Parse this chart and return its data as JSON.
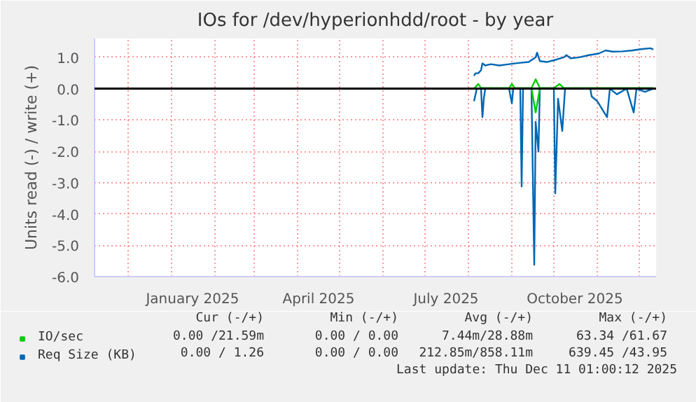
{
  "chart_data": {
    "type": "line",
    "title": "IOs for /dev/hyperionhdd/root - by year",
    "ylabel": "Units read (-) / write (+)",
    "xlim": [
      "2024-11-07",
      "2025-12-13"
    ],
    "xticks": [
      {
        "value": "2024-12-01",
        "label": null
      },
      {
        "value": "2025-01-01",
        "label": null
      },
      {
        "value": "2025-01-16",
        "label": "January 2025"
      },
      {
        "value": "2025-02-01",
        "label": null
      },
      {
        "value": "2025-03-01",
        "label": null
      },
      {
        "value": "2025-04-01",
        "label": null
      },
      {
        "value": "2025-04-16",
        "label": "April 2025"
      },
      {
        "value": "2025-05-01",
        "label": null
      },
      {
        "value": "2025-06-01",
        "label": null
      },
      {
        "value": "2025-07-01",
        "label": null
      },
      {
        "value": "2025-07-16",
        "label": "July 2025"
      },
      {
        "value": "2025-08-01",
        "label": null
      },
      {
        "value": "2025-09-01",
        "label": null
      },
      {
        "value": "2025-10-01",
        "label": null
      },
      {
        "value": "2025-10-16",
        "label": "October 2025"
      },
      {
        "value": "2025-11-01",
        "label": null
      },
      {
        "value": "2025-12-01",
        "label": null
      }
    ],
    "ylim": [
      -6,
      1.6
    ],
    "yticks": [
      {
        "value": -6,
        "label": "-6.0"
      },
      {
        "value": -5,
        "label": "-5.0"
      },
      {
        "value": -4,
        "label": "-4.0"
      },
      {
        "value": -3,
        "label": "-3.0"
      },
      {
        "value": -2,
        "label": "-2.0"
      },
      {
        "value": -1,
        "label": "-1.0"
      },
      {
        "value": 0,
        "label": "0.0"
      },
      {
        "value": 1,
        "label": "1.0"
      }
    ],
    "grid": true,
    "legend": "bottom",
    "ref_lines": [
      {
        "axis": "y",
        "value": 0,
        "label": null,
        "color": "#000000"
      }
    ],
    "series": [
      {
        "name": "Req Size (KB)",
        "color": "#0066b3",
        "x": [
          "2025-08-05",
          "2025-08-06",
          "2025-08-08",
          "2025-08-10",
          "2025-08-11",
          "2025-08-13",
          "2025-08-17",
          "2025-08-23",
          "2025-08-30",
          "2025-09-06",
          "2025-09-13",
          "2025-09-18",
          "2025-09-19",
          "2025-09-21",
          "2025-09-26",
          "2025-10-03",
          "2025-10-08",
          "2025-10-10",
          "2025-10-13",
          "2025-10-19",
          "2025-10-26",
          "2025-11-02",
          "2025-11-07",
          "2025-11-12",
          "2025-11-19",
          "2025-11-26",
          "2025-12-02",
          "2025-12-09",
          "2025-12-11"
        ],
        "values": [
          0.41,
          0.49,
          0.49,
          0.59,
          0.81,
          0.74,
          0.78,
          0.74,
          0.78,
          0.82,
          0.85,
          1.0,
          1.15,
          0.88,
          0.85,
          0.93,
          1.0,
          1.07,
          0.97,
          1.0,
          1.07,
          1.12,
          1.22,
          1.18,
          1.19,
          1.22,
          1.26,
          1.29,
          1.25
        ]
      },
      {
        "color": "#0066b3",
        "x": [
          "2025-08-05",
          "2025-08-07",
          "2025-08-10",
          "2025-08-11",
          "2025-08-12",
          "2025-08-13",
          "2025-08-30",
          "2025-09-01",
          "2025-09-02",
          "2025-09-07",
          "2025-09-08",
          "2025-09-09",
          "2025-09-15",
          "2025-09-17",
          "2025-09-18",
          "2025-09-20",
          "2025-09-21",
          "2025-10-01",
          "2025-10-02",
          "2025-10-04",
          "2025-10-07",
          "2025-10-09",
          "2025-10-27",
          "2025-10-28",
          "2025-11-01",
          "2025-11-08",
          "2025-11-10",
          "2025-11-15",
          "2025-11-22",
          "2025-11-27",
          "2025-11-29",
          "2025-12-05",
          "2025-12-11"
        ],
        "values": [
          -0.4,
          0,
          0,
          -0.91,
          -0.32,
          0,
          0,
          -0.47,
          0,
          0,
          -3.12,
          0,
          0,
          -5.62,
          -1.06,
          -2.01,
          0,
          0,
          -3.34,
          -0.32,
          -1.35,
          0,
          0,
          -0.25,
          -0.4,
          -0.91,
          0,
          -0.18,
          0,
          -0.76,
          0,
          -0.1,
          0
        ]
      },
      {
        "name": "IO/sec",
        "color": "#00cc00",
        "x": [
          "2025-08-05",
          "2025-08-08",
          "2025-08-10",
          "2025-08-30",
          "2025-09-01",
          "2025-09-03",
          "2025-09-15",
          "2025-09-18",
          "2025-09-21",
          "2025-10-01",
          "2025-10-05",
          "2025-10-08",
          "2025-12-11"
        ],
        "values": [
          0,
          0.15,
          0.02,
          0.02,
          0.15,
          0.02,
          0.02,
          0.3,
          0.02,
          0.02,
          0.15,
          0.02,
          0.02
        ]
      },
      {
        "color": "#00cc00",
        "x": [
          "2025-08-05",
          "2025-09-15",
          "2025-09-18",
          "2025-09-21",
          "2025-12-11"
        ],
        "values": [
          0,
          0,
          -0.76,
          0,
          0
        ]
      }
    ],
    "annotations": [
      "Cur (-/+)",
      "Min (-/+)",
      "Avg (-/+)",
      "Max (-/+)",
      "0.00 /21.59m",
      "0.00 / 0.00",
      "7.44m/28.88m",
      "63.34 /61.67",
      "0.00 / 1.26",
      "0.00 / 0.00",
      "212.85m/858.11m",
      "639.45 /43.95",
      "Last update: Thu Dec 11 01:00:12 2025"
    ]
  }
}
